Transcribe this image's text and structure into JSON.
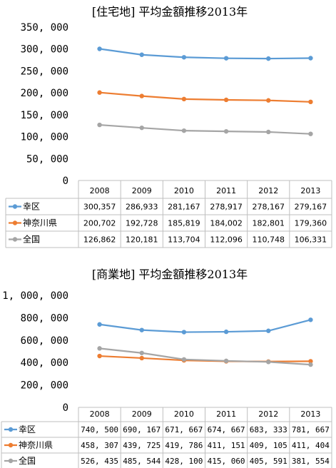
{
  "chart_data": [
    {
      "type": "line",
      "title": "[住宅地] 平均金額推移2013年",
      "categories": [
        "2008",
        "2009",
        "2010",
        "2011",
        "2012",
        "2013"
      ],
      "series": [
        {
          "name": "幸区",
          "color": "#5b9bd5",
          "values": [
            300357,
            286933,
            281167,
            278917,
            278167,
            279167
          ],
          "labels": [
            "300,357",
            "286,933",
            "281,167",
            "278,917",
            "278,167",
            "279,167"
          ]
        },
        {
          "name": "神奈川県",
          "color": "#ed7d31",
          "values": [
            200702,
            192728,
            185819,
            184002,
            182801,
            179360
          ],
          "labels": [
            "200,702",
            "192,728",
            "185,819",
            "184,002",
            "182,801",
            "179,360"
          ]
        },
        {
          "name": "全国",
          "color": "#a5a5a5",
          "values": [
            126862,
            120181,
            113704,
            112096,
            110748,
            106331
          ],
          "labels": [
            "126,862",
            "120,181",
            "113,704",
            "112,096",
            "110,748",
            "106,331"
          ]
        }
      ],
      "ylim": [
        0,
        350000
      ],
      "yticks": [
        0,
        50000,
        100000,
        150000,
        200000,
        250000,
        300000,
        350000
      ],
      "ytick_labels": [
        "0",
        "50, 000",
        "100, 000",
        "150, 000",
        "200, 000",
        "250, 000",
        "300, 000",
        "350, 000"
      ],
      "grid": false,
      "legend": "data-table"
    },
    {
      "type": "line",
      "title": "[商業地] 平均金額推移2013年",
      "categories": [
        "2008",
        "2009",
        "2010",
        "2011",
        "2012",
        "2013"
      ],
      "series": [
        {
          "name": "幸区",
          "color": "#5b9bd5",
          "values": [
            740500,
            690167,
            671667,
            674667,
            683333,
            781667
          ],
          "labels": [
            "740, 500",
            "690, 167",
            "671, 667",
            "674, 667",
            "683, 333",
            "781, 667"
          ]
        },
        {
          "name": "神奈川県",
          "color": "#ed7d31",
          "values": [
            458307,
            439725,
            419786,
            411151,
            409105,
            411404
          ],
          "labels": [
            "458, 307",
            "439, 725",
            "419, 786",
            "411, 151",
            "409, 105",
            "411, 404"
          ]
        },
        {
          "name": "全国",
          "color": "#a5a5a5",
          "values": [
            526435,
            485544,
            428100,
            415060,
            405591,
            381554
          ],
          "labels": [
            "526, 435",
            "485, 544",
            "428, 100",
            "415, 060",
            "405, 591",
            "381, 554"
          ]
        }
      ],
      "ylim": [
        0,
        1000000
      ],
      "yticks": [
        0,
        200000,
        400000,
        600000,
        800000,
        1000000
      ],
      "ytick_labels": [
        "0",
        "200, 000",
        "400, 000",
        "600, 000",
        "800, 000",
        "1, 000, 000"
      ],
      "grid": false,
      "legend": "data-table"
    }
  ]
}
